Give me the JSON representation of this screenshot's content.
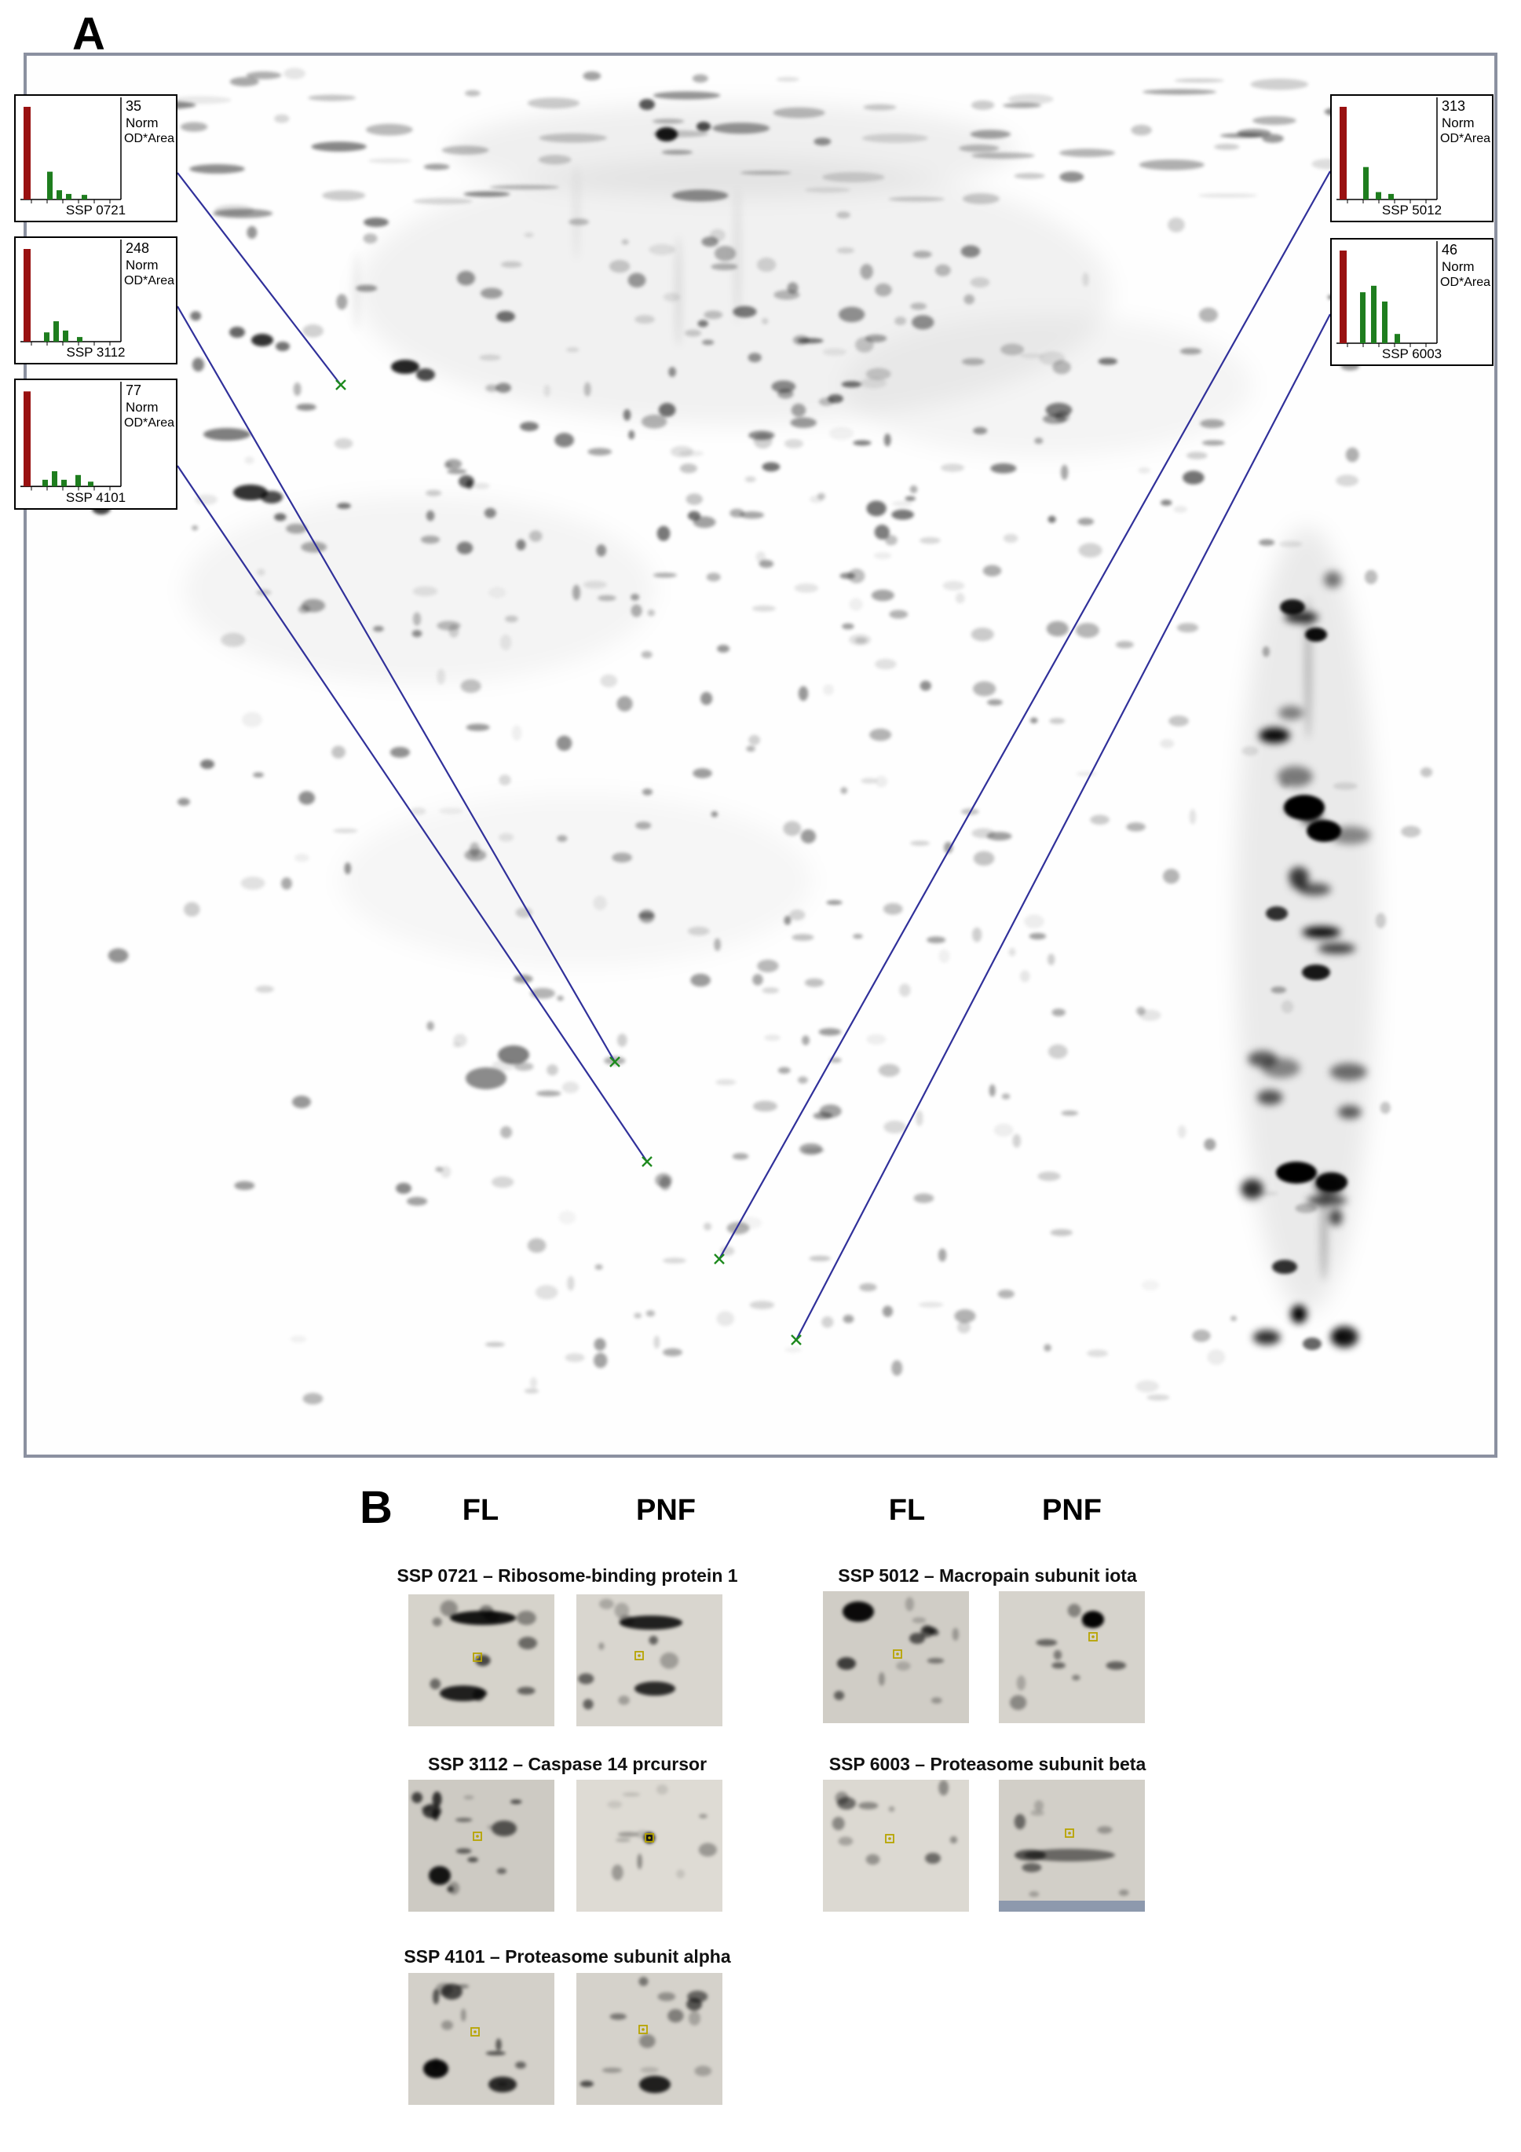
{
  "figure": {
    "panel_a_label": "A",
    "panel_b_label": "B"
  },
  "insets": [
    {
      "value": "35",
      "norm": "Norm",
      "unit": "OD*Area",
      "ssp": "SSP 0721"
    },
    {
      "value": "248",
      "norm": "Norm",
      "unit": "OD*Area",
      "ssp": "SSP 3112"
    },
    {
      "value": "77",
      "norm": "Norm",
      "unit": "OD*Area",
      "ssp": "SSP 4101"
    },
    {
      "value": "313",
      "norm": "Norm",
      "unit": "OD*Area",
      "ssp": "SSP 5012"
    },
    {
      "value": "46",
      "norm": "Norm",
      "unit": "OD*Area",
      "ssp": "SSP 6003"
    }
  ],
  "panel_b": {
    "groups": [
      {
        "col1": "FL",
        "col2": "PNF",
        "sections": [
          {
            "title": "SSP 0721 – Ribosome-binding protein 1"
          },
          {
            "title": "SSP 3112 – Caspase 14 prcursor"
          },
          {
            "title": "SSP 4101 – Proteasome subunit alpha"
          }
        ]
      },
      {
        "col1": "FL",
        "col2": "PNF",
        "sections": [
          {
            "title": "SSP 5012 – Macropain subunit iota"
          },
          {
            "title": "SSP 6003 – Proteasome subunit beta"
          }
        ]
      }
    ]
  },
  "colors": {
    "panel_border": "#8b90a0",
    "connector_line": "#30309a",
    "marker_green": "#1e8a1e",
    "bar_red": "#991111",
    "bar_green": "#1e7d1e",
    "crop_marker_yellow": "#b7a400"
  }
}
